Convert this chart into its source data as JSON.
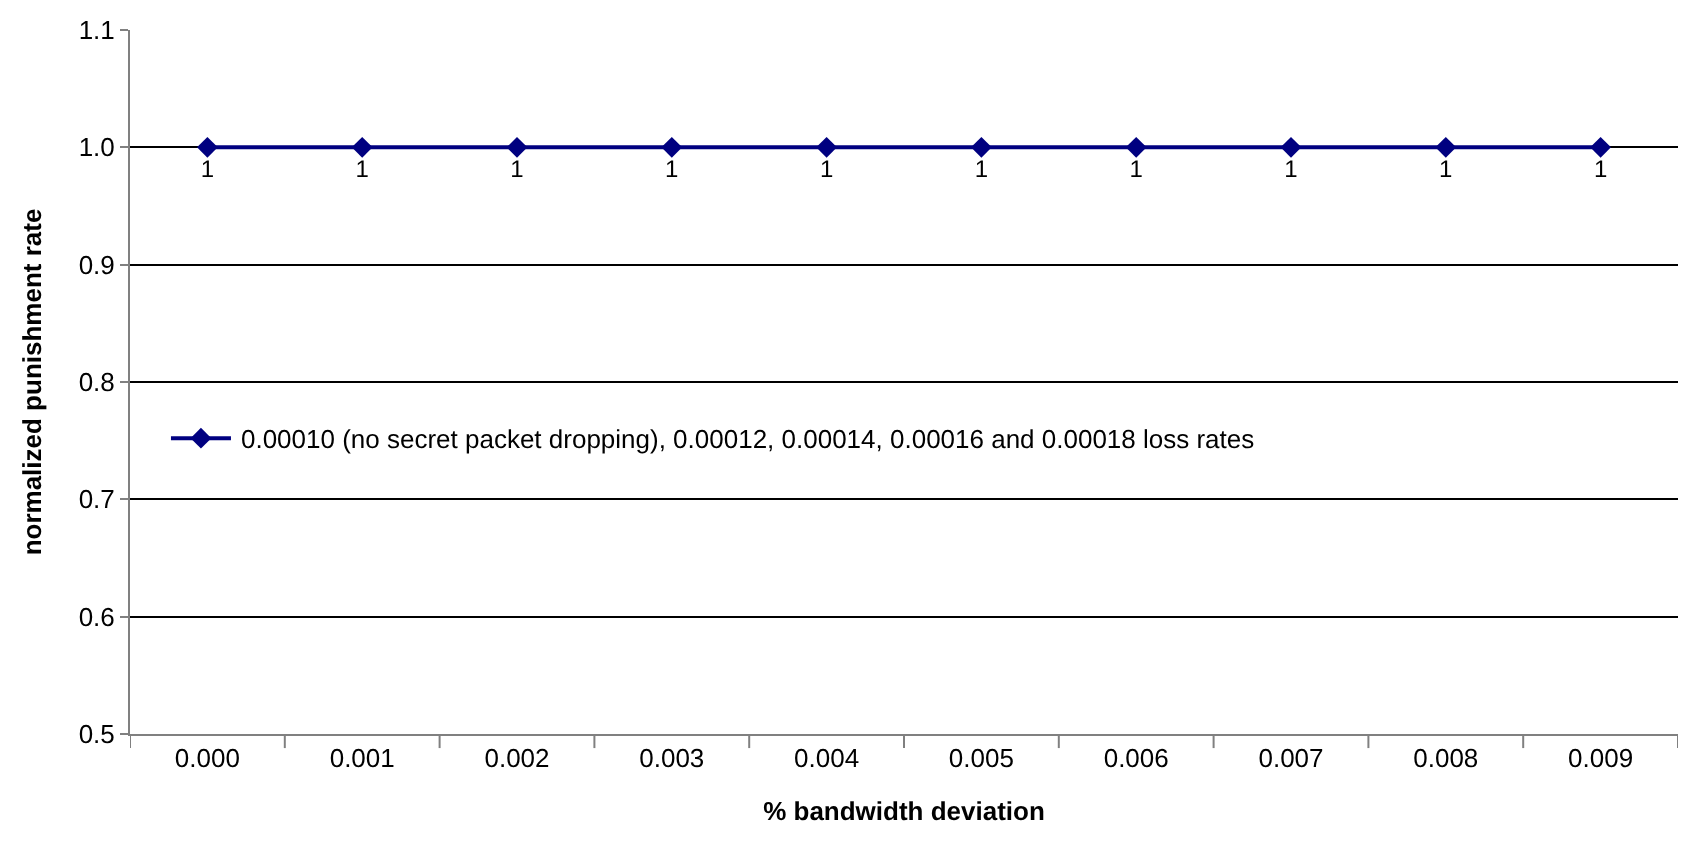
{
  "chart_data": {
    "type": "line",
    "xlabel": "% bandwidth deviation",
    "ylabel": "normalized punishment rate",
    "categories": [
      "0.000",
      "0.001",
      "0.002",
      "0.003",
      "0.004",
      "0.005",
      "0.006",
      "0.007",
      "0.008",
      "0.009"
    ],
    "series": [
      {
        "name": "0.00010 (no secret packet dropping), 0.00012, 0.00014, 0.00016 and 0.00018 loss rates",
        "color": "#000080",
        "values": [
          1,
          1,
          1,
          1,
          1,
          1,
          1,
          1,
          1,
          1
        ],
        "value_labels": [
          "1",
          "1",
          "1",
          "1",
          "1",
          "1",
          "1",
          "1",
          "1",
          "1"
        ]
      }
    ],
    "ylim": [
      0.5,
      1.1
    ],
    "yticks": [
      {
        "value": 0.5,
        "label": "0.5"
      },
      {
        "value": 0.6,
        "label": "0.6"
      },
      {
        "value": 0.7,
        "label": "0.7"
      },
      {
        "value": 0.8,
        "label": "0.8"
      },
      {
        "value": 0.9,
        "label": "0.9"
      },
      {
        "value": 1.0,
        "label": "1.0"
      },
      {
        "value": 1.1,
        "label": "1.1"
      }
    ],
    "grid": "y",
    "legend": "left",
    "marker": "diamond",
    "line_style": "solid"
  }
}
